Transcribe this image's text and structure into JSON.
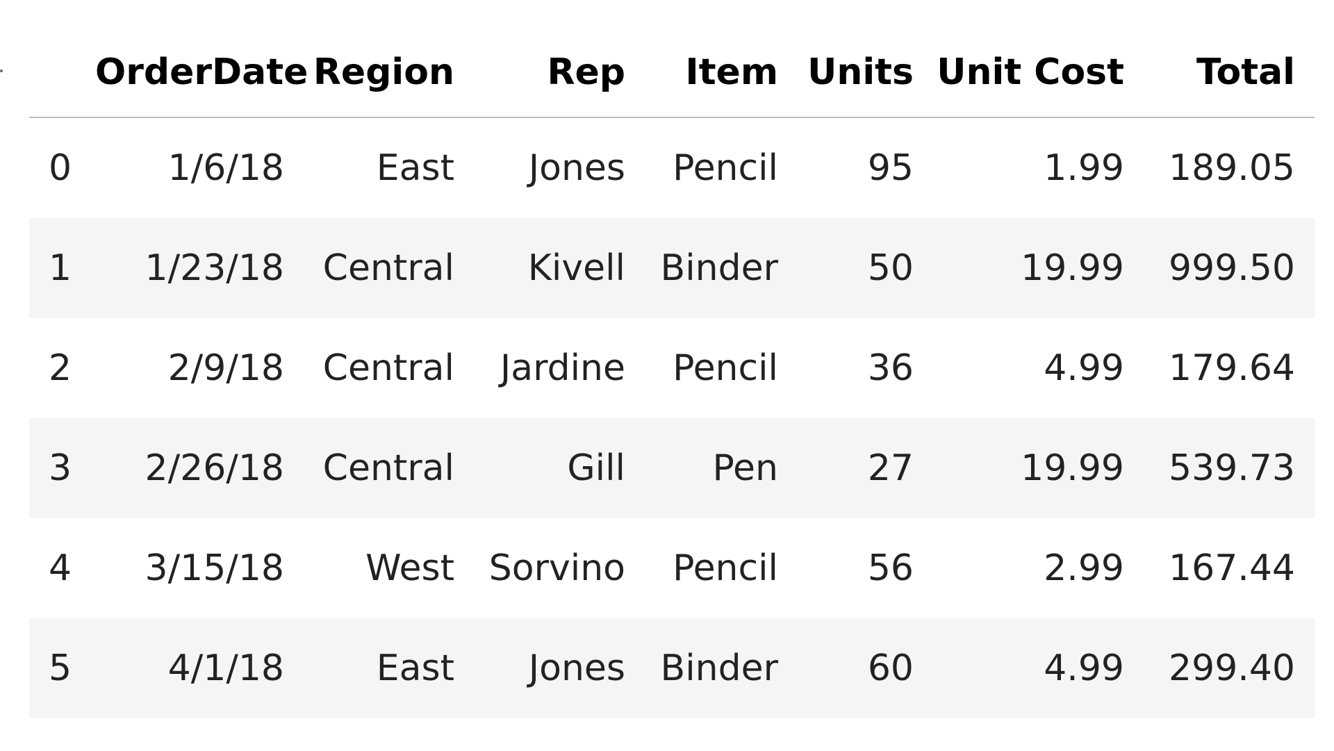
{
  "table": {
    "columns": [
      "",
      "OrderDate",
      "Region",
      "Rep",
      "Item",
      "Units",
      "Unit Cost",
      "Total"
    ],
    "rows": [
      [
        "0",
        "1/6/18",
        "East",
        "Jones",
        "Pencil",
        "95",
        "1.99",
        "189.05"
      ],
      [
        "1",
        "1/23/18",
        "Central",
        "Kivell",
        "Binder",
        "50",
        "19.99",
        "999.50"
      ],
      [
        "2",
        "2/9/18",
        "Central",
        "Jardine",
        "Pencil",
        "36",
        "4.99",
        "179.64"
      ],
      [
        "3",
        "2/26/18",
        "Central",
        "Gill",
        "Pen",
        "27",
        "19.99",
        "539.73"
      ],
      [
        "4",
        "3/15/18",
        "West",
        "Sorvino",
        "Pencil",
        "56",
        "2.99",
        "167.44"
      ],
      [
        "5",
        "4/1/18",
        "East",
        "Jones",
        "Binder",
        "60",
        "4.99",
        "299.40"
      ]
    ]
  },
  "colors": {
    "stripe": "#f5f5f5",
    "header_rule": "#bdbdbd"
  }
}
